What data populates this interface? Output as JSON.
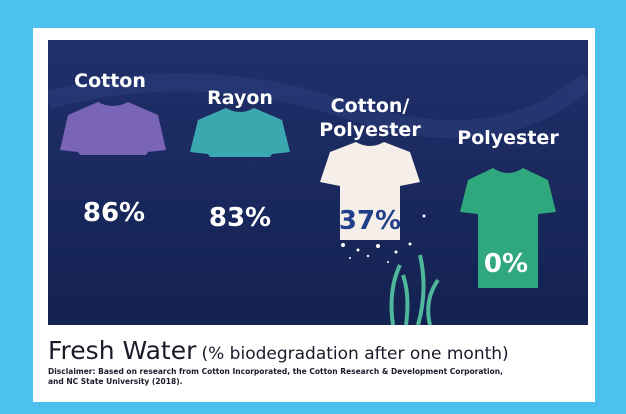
{
  "title": "Fresh Water",
  "subtitle": "(% biodegradation after one month)",
  "disclaimer": "Disclaimer: Based on research from Cotton Incorporated, the Cotton Research & Development Corporation, and NC State University (2018).",
  "items": [
    {
      "label": "Cotton",
      "value": "86%"
    },
    {
      "label": "Rayon",
      "value": "83%"
    },
    {
      "label_lines": [
        "Cotton/",
        "Polyester"
      ],
      "value": "37%"
    },
    {
      "label": "Polyester",
      "value": "0%"
    }
  ]
}
